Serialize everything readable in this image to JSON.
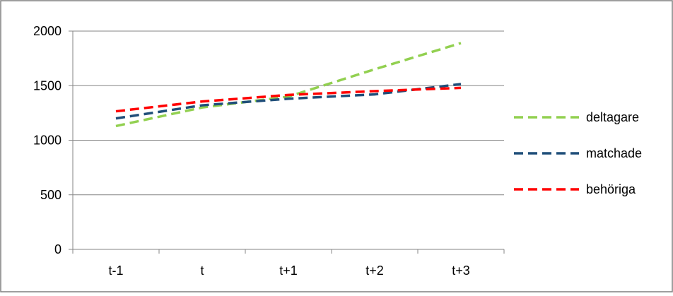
{
  "chart_data": {
    "type": "line",
    "categories": [
      "t-1",
      "t",
      "t+1",
      "t+2",
      "t+3"
    ],
    "ylim": [
      0,
      2000
    ],
    "yticks": [
      0,
      500,
      1000,
      1500,
      2000
    ],
    "grid": true,
    "legend_position": "right",
    "line_style": "dashed",
    "series": [
      {
        "name": "deltagare",
        "color": "#92d050",
        "values": [
          1130,
          1300,
          1400,
          1650,
          1890
        ]
      },
      {
        "name": "matchade",
        "color": "#1f4e79",
        "values": [
          1200,
          1320,
          1380,
          1420,
          1515
        ]
      },
      {
        "name": "behöriga",
        "color": "#ff0000",
        "values": [
          1265,
          1355,
          1415,
          1450,
          1480
        ]
      }
    ]
  }
}
